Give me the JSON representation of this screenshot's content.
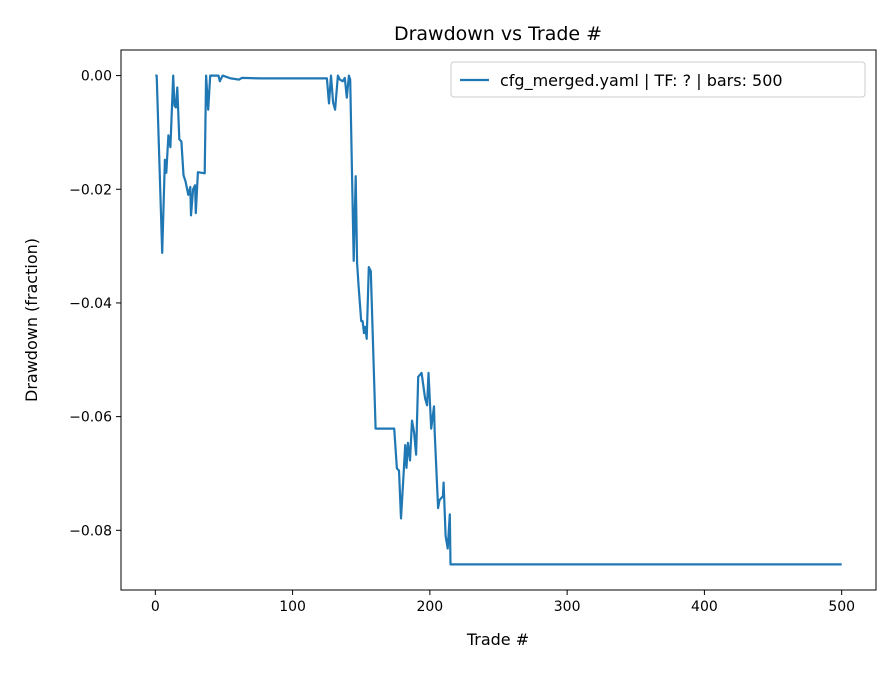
{
  "chart_data": {
    "type": "line",
    "title": "Drawdown vs Trade #",
    "xlabel": "Trade #",
    "ylabel": "Drawdown (fraction)",
    "xlim": [
      -25,
      525
    ],
    "ylim": [
      -0.0905,
      0.0045
    ],
    "xticks": [
      0,
      100,
      200,
      300,
      400,
      500
    ],
    "xtick_labels": [
      "0",
      "100",
      "200",
      "300",
      "400",
      "500"
    ],
    "yticks": [
      0.0,
      -0.02,
      -0.04,
      -0.06,
      -0.08
    ],
    "ytick_labels": [
      "0.00",
      "−0.02",
      "−0.04",
      "−0.06",
      "−0.08"
    ],
    "grid": false,
    "legend_position": "top-right",
    "series": [
      {
        "name": "cfg_merged.yaml | TF: ? | bars: 500",
        "color": "#1f77b4",
        "x": [
          0,
          1,
          5,
          7,
          8,
          9.5,
          11,
          13,
          14,
          15,
          16,
          17.5,
          19,
          20.5,
          22,
          24,
          25.5,
          26,
          27.5,
          29,
          29.5,
          31,
          36,
          37,
          38.5,
          40,
          46,
          47,
          49,
          55,
          61,
          63,
          77,
          125,
          126.5,
          128,
          129.5,
          131,
          133,
          134.5,
          136.5,
          138,
          139.5,
          141,
          142,
          144.5,
          146,
          147,
          148,
          150,
          151,
          152,
          153,
          154,
          155.5,
          157,
          160.5,
          174,
          176,
          177.5,
          179,
          180.5,
          182,
          183,
          184,
          185.5,
          187,
          188.5,
          190,
          191.5,
          194,
          196.5,
          198,
          199,
          201,
          203,
          203.5,
          206,
          207,
          209.5,
          210,
          211.5,
          213,
          214.5,
          215,
          500
        ],
        "y": [
          0,
          0,
          -0.0312,
          -0.0148,
          -0.0171,
          -0.0105,
          -0.0126,
          0,
          -0.0053,
          -0.0056,
          -0.0021,
          -0.0112,
          -0.0116,
          -0.0175,
          -0.0186,
          -0.021,
          -0.0196,
          -0.0246,
          -0.02,
          -0.0193,
          -0.0242,
          -0.017,
          -0.0172,
          0,
          -0.006,
          0,
          0,
          -0.001,
          0,
          -0.0005,
          -0.0007,
          -0.0004,
          -0.0005,
          -0.0005,
          -0.0049,
          0,
          -0.0047,
          -0.006,
          0,
          -0.0007,
          -0.001,
          -0.0004,
          -0.0039,
          0,
          -0.0007,
          -0.0326,
          -0.0177,
          -0.033,
          -0.0368,
          -0.0432,
          -0.0432,
          -0.0453,
          -0.0442,
          -0.0463,
          -0.0337,
          -0.0344,
          -0.0621,
          -0.0621,
          -0.0691,
          -0.0695,
          -0.0779,
          -0.0716,
          -0.065,
          -0.069,
          -0.0646,
          -0.0677,
          -0.0607,
          -0.0628,
          -0.0667,
          -0.053,
          -0.0523,
          -0.0568,
          -0.058,
          -0.0523,
          -0.0621,
          -0.0582,
          -0.0628,
          -0.0761,
          -0.0747,
          -0.074,
          -0.0716,
          -0.081,
          -0.0832,
          -0.0772,
          -0.086,
          -0.086
        ]
      }
    ]
  }
}
